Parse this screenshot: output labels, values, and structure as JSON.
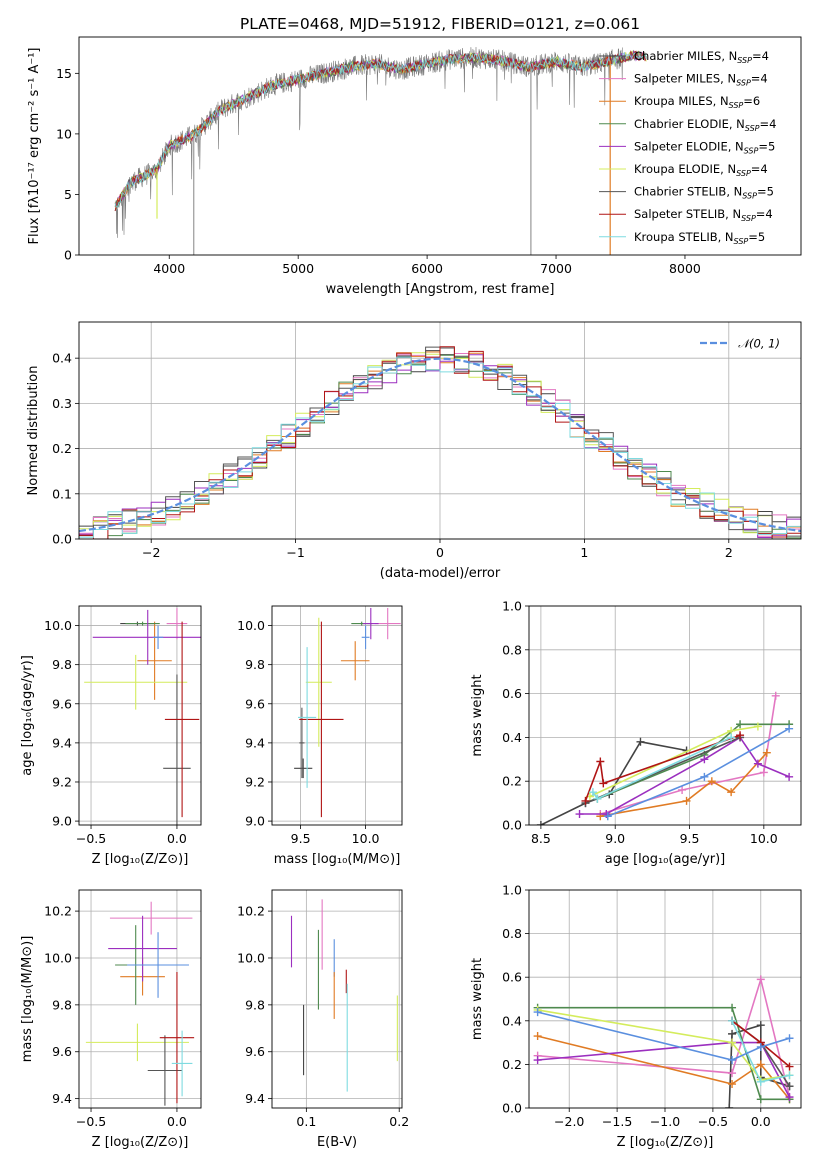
{
  "figure": {
    "title": "PLATE=0468, MJD=51912, FIBERID=0121, z=0.061"
  },
  "colors": {
    "Chabrier MILES": "#444444",
    "Salpeter MILES": "#e377c2",
    "Kroupa MILES": "#e07b24",
    "Chabrier ELODIE": "#4f8a4f",
    "Salpeter ELODIE": "#9b2fbf",
    "Kroupa ELODIE": "#d4ec5c",
    "Chabrier STELIB": "#555555",
    "Salpeter STELIB": "#b01515",
    "Kroupa STELIB": "#7fdbe0",
    "normal": "#5a8fdf",
    "blue_series": "#5a8fdf",
    "data_grey": "#7a7a7a"
  },
  "chart_data": [
    {
      "id": "spectrum",
      "type": "line",
      "title": "PLATE=0468, MJD=51912, FIBERID=0121, z=0.061",
      "xlabel": "wavelength [Angstrom, rest frame]",
      "ylabel": "Flux [fλ10⁻¹⁷ erg cm⁻² s⁻¹ A⁻¹]",
      "xlim": [
        3300,
        8900
      ],
      "ylim": [
        0,
        18
      ],
      "xticks": [
        4000,
        5000,
        6000,
        7000,
        8000
      ],
      "yticks": [
        0,
        5,
        10,
        15
      ],
      "grid": false,
      "legend_position": "right",
      "continuum": {
        "x": [
          3580,
          3700,
          3800,
          3900,
          4000,
          4100,
          4200,
          4300,
          4400,
          4600,
          4800,
          5000,
          5200,
          5400,
          5600,
          5800,
          6000,
          6200,
          6400,
          6600,
          6800,
          7000,
          7200,
          7400,
          7600,
          7800,
          8000,
          8200,
          8500
        ],
        "y": [
          4.0,
          6.0,
          6.5,
          7.0,
          9.0,
          9.5,
          10.0,
          11.0,
          12.0,
          13.0,
          14.0,
          14.5,
          15.0,
          15.5,
          15.8,
          15.3,
          15.8,
          16.2,
          16.3,
          16.0,
          15.5,
          16.0,
          15.5,
          16.0,
          16.5,
          16.2,
          16.0,
          16.3,
          16.5
        ]
      },
      "legend": [
        {
          "label": "Chabrier MILES, N",
          "sub": "SSP",
          "tail": "=4"
        },
        {
          "label": "Salpeter MILES, N",
          "sub": "SSP",
          "tail": "=4"
        },
        {
          "label": "Kroupa MILES, N",
          "sub": "SSP",
          "tail": "=6"
        },
        {
          "label": "Chabrier ELODIE, N",
          "sub": "SSP",
          "tail": "=4"
        },
        {
          "label": "Salpeter ELODIE, N",
          "sub": "SSP",
          "tail": "=5"
        },
        {
          "label": "Kroupa ELODIE, N",
          "sub": "SSP",
          "tail": "=4"
        },
        {
          "label": "Chabrier STELIB, N",
          "sub": "SSP",
          "tail": "=5"
        },
        {
          "label": "Salpeter STELIB, N",
          "sub": "SSP",
          "tail": "=4"
        },
        {
          "label": "Kroupa STELIB, N",
          "sub": "SSP",
          "tail": "=5"
        }
      ]
    },
    {
      "id": "residuals",
      "type": "line",
      "xlabel": "(data-model)/error",
      "ylabel": "Normed distribution",
      "xlim": [
        -2.5,
        2.5
      ],
      "ylim": [
        0,
        0.48
      ],
      "xticks": [
        -2,
        -1,
        0,
        1,
        2
      ],
      "yticks": [
        0.0,
        0.1,
        0.2,
        0.3,
        0.4
      ],
      "grid": true,
      "legend_position": "top-right",
      "normal_label": "𝒩(0, 1)",
      "bin_width": 0.1
    },
    {
      "id": "age_vs_Z",
      "type": "scatter",
      "xlabel": "Z [log₁₀(Z/Z⊙)]",
      "ylabel": "age  [log₁₀(age/yr)]",
      "xlim": [
        -0.57,
        0.14
      ],
      "ylim": [
        8.98,
        10.1
      ],
      "xticks": [
        -0.5,
        0.0
      ],
      "yticks": [
        9.0,
        9.2,
        9.4,
        9.6,
        9.8,
        10.0
      ],
      "grid": true,
      "points": [
        {
          "model": "Chabrier MILES",
          "x": -0.23,
          "y": 10.01,
          "xerr": 0.1,
          "yerr": 0.01
        },
        {
          "model": "Salpeter MILES",
          "x": 0.0,
          "y": 10.01,
          "xerr": 0.06,
          "yerr": 0.08
        },
        {
          "model": "Kroupa MILES",
          "x": -0.13,
          "y": 9.82,
          "xerr": 0.1,
          "yerr": 0.2
        },
        {
          "model": "Chabrier ELODIE",
          "x": -0.2,
          "y": 10.01,
          "xerr": 0.1,
          "yerr": 0.01
        },
        {
          "model": "Salpeter ELODIE",
          "x": -0.17,
          "y": 9.94,
          "xerr": 0.32,
          "yerr": 0.14
        },
        {
          "model": "Kroupa ELODIE",
          "x": -0.24,
          "y": 9.71,
          "xerr": 0.3,
          "yerr": 0.14
        },
        {
          "model": "Chabrier STELIB",
          "x": 0.0,
          "y": 9.27,
          "xerr": 0.08,
          "yerr": 0.48
        },
        {
          "model": "Salpeter STELIB",
          "x": 0.03,
          "y": 9.52,
          "xerr": 0.1,
          "yerr": 0.5
        },
        {
          "model": "blue",
          "x": -0.11,
          "y": 9.94,
          "xerr": 0.03,
          "yerr": 0.06
        }
      ]
    },
    {
      "id": "age_vs_mass",
      "type": "scatter",
      "xlabel": "mass [log₁₀(M/M⊙)]",
      "ylabel": "",
      "xlim": [
        9.28,
        10.28
      ],
      "ylim": [
        8.98,
        10.1
      ],
      "xticks": [
        9.5,
        10.0
      ],
      "yticks": [
        9.0,
        9.2,
        9.4,
        9.6,
        9.8,
        10.0
      ],
      "grid": true,
      "points": [
        {
          "model": "Chabrier MILES",
          "x": 9.52,
          "y": 9.27,
          "xerr": 0.07,
          "yerr": 0.05
        },
        {
          "model": "Salpeter MILES",
          "x": 10.17,
          "y": 10.01,
          "xerr": 0.1,
          "yerr": 0.08
        },
        {
          "model": "Kroupa MILES",
          "x": 9.92,
          "y": 9.82,
          "xerr": 0.11,
          "yerr": 0.1
        },
        {
          "model": "Chabrier ELODIE",
          "x": 9.97,
          "y": 10.01,
          "xerr": 0.08,
          "yerr": 0.01
        },
        {
          "model": "Salpeter ELODIE",
          "x": 10.04,
          "y": 10.01,
          "xerr": 0.06,
          "yerr": 0.08
        },
        {
          "model": "Kroupa ELODIE",
          "x": 9.64,
          "y": 9.71,
          "xerr": 0.1,
          "yerr": 0.33
        },
        {
          "model": "Chabrier STELIB",
          "x": 9.51,
          "y": 9.4,
          "xerr": 0.02,
          "yerr": 0.18
        },
        {
          "model": "Salpeter STELIB",
          "x": 9.66,
          "y": 9.52,
          "xerr": 0.17,
          "yerr": 0.5
        },
        {
          "model": "Kroupa STELIB",
          "x": 9.55,
          "y": 9.53,
          "xerr": 0.07,
          "yerr": 0.36
        },
        {
          "model": "blue",
          "x": 10.0,
          "y": 9.94,
          "xerr": 0.03,
          "yerr": 0.06
        }
      ]
    },
    {
      "id": "weight_vs_age",
      "type": "line",
      "xlabel": "age  [log₁₀(age/yr)]",
      "ylabel": "mass weight",
      "xlim": [
        8.42,
        10.25
      ],
      "ylim": [
        0.0,
        1.0
      ],
      "xticks": [
        8.5,
        9.0,
        9.5,
        10.0
      ],
      "yticks": [
        0.0,
        0.2,
        0.4,
        0.6,
        0.8,
        1.0
      ],
      "grid": true,
      "series": [
        {
          "model": "Chabrier MILES",
          "x": [
            8.5,
            8.8,
            8.96,
            9.17,
            9.48
          ],
          "y": [
            0.0,
            0.1,
            0.14,
            0.38,
            0.34
          ]
        },
        {
          "model": "Salpeter MILES",
          "x": [
            8.9,
            9.45,
            10.0,
            10.08
          ],
          "y": [
            0.05,
            0.16,
            0.24,
            0.59
          ]
        },
        {
          "model": "Kroupa MILES",
          "x": [
            8.9,
            9.48,
            9.65,
            9.78,
            10.02
          ],
          "y": [
            0.04,
            0.11,
            0.2,
            0.15,
            0.33
          ]
        },
        {
          "model": "Chabrier ELODIE",
          "x": [
            8.88,
            9.6,
            9.84,
            10.17
          ],
          "y": [
            0.12,
            0.32,
            0.46,
            0.46
          ]
        },
        {
          "model": "Salpeter ELODIE",
          "x": [
            8.76,
            8.94,
            9.6,
            9.84,
            9.96,
            10.17
          ],
          "y": [
            0.05,
            0.05,
            0.3,
            0.4,
            0.28,
            0.22
          ]
        },
        {
          "model": "Kroupa ELODIE",
          "x": [
            8.83,
            9.78,
            9.96
          ],
          "y": [
            0.13,
            0.43,
            0.45
          ]
        },
        {
          "model": "Chabrier STELIB",
          "x": [
            8.8,
            9.84
          ],
          "y": [
            0.1,
            0.4
          ]
        },
        {
          "model": "Salpeter STELIB",
          "x": [
            8.8,
            8.9,
            8.92,
            9.84
          ],
          "y": [
            0.11,
            0.29,
            0.19,
            0.41
          ]
        },
        {
          "model": "Kroupa STELIB",
          "x": [
            8.85,
            8.88,
            9.78
          ],
          "y": [
            0.15,
            0.12,
            0.4
          ]
        },
        {
          "model": "blue",
          "x": [
            8.95,
            9.6,
            10.17
          ],
          "y": [
            0.04,
            0.22,
            0.44
          ]
        }
      ]
    },
    {
      "id": "mass_vs_Z",
      "type": "scatter",
      "xlabel": "Z [log₁₀(Z/Z⊙)]",
      "ylabel": "mass [log₁₀(M/M⊙)]",
      "xlim": [
        -0.57,
        0.14
      ],
      "ylim": [
        9.36,
        10.29
      ],
      "xticks": [
        -0.5,
        0.0
      ],
      "yticks": [
        9.4,
        9.6,
        9.8,
        10.0,
        10.2
      ],
      "grid": true,
      "points": [
        {
          "model": "Salpeter MILES",
          "x": -0.15,
          "y": 10.17,
          "xerr": 0.24,
          "yerr": 0.07
        },
        {
          "model": "Kroupa MILES",
          "x": -0.2,
          "y": 9.92,
          "xerr": 0.13,
          "yerr": 0.08
        },
        {
          "model": "Chabrier ELODIE",
          "x": -0.24,
          "y": 9.97,
          "xerr": 0.12,
          "yerr": 0.17
        },
        {
          "model": "Salpeter ELODIE",
          "x": -0.2,
          "y": 10.04,
          "xerr": 0.2,
          "yerr": 0.14
        },
        {
          "model": "Kroupa ELODIE",
          "x": -0.23,
          "y": 9.64,
          "xerr": 0.3,
          "yerr": 0.08
        },
        {
          "model": "Chabrier STELIB",
          "x": -0.07,
          "y": 9.52,
          "xerr": 0.1,
          "yerr": 0.15
        },
        {
          "model": "Salpeter STELIB",
          "x": 0.0,
          "y": 9.66,
          "xerr": 0.1,
          "yerr": 0.28
        },
        {
          "model": "Kroupa STELIB",
          "x": 0.03,
          "y": 9.55,
          "xerr": 0.06,
          "yerr": 0.14
        },
        {
          "model": "blue",
          "x": -0.11,
          "y": 9.97,
          "xerr": 0.18,
          "yerr": 0.14
        }
      ]
    },
    {
      "id": "mass_vs_EBV",
      "type": "scatter",
      "xlabel": "E(B-V)",
      "ylabel": "",
      "xlim": [
        0.063,
        0.203
      ],
      "ylim": [
        9.36,
        10.29
      ],
      "xticks": [
        0.1,
        0.2
      ],
      "yticks": [
        9.4,
        9.6,
        9.8,
        10.0,
        10.2
      ],
      "grid": true,
      "points": [
        {
          "model": "Chabrier MILES",
          "x": 0.097,
          "y": 9.65,
          "yerr": 0.15
        },
        {
          "model": "Salpeter ELODIE",
          "x": 0.084,
          "y": 10.07,
          "yerr": 0.11
        },
        {
          "model": "Chabrier ELODIE",
          "x": 0.113,
          "y": 9.95,
          "yerr": 0.17
        },
        {
          "model": "Salpeter MILES",
          "x": 0.117,
          "y": 10.1,
          "yerr": 0.15
        },
        {
          "model": "blue",
          "x": 0.13,
          "y": 10.0,
          "yerr": 0.08
        },
        {
          "model": "Kroupa MILES",
          "x": 0.13,
          "y": 9.84,
          "yerr": 0.1
        },
        {
          "model": "Salpeter STELIB",
          "x": 0.143,
          "y": 9.9,
          "yerr": 0.05
        },
        {
          "model": "Kroupa STELIB",
          "x": 0.144,
          "y": 9.66,
          "yerr": 0.23
        },
        {
          "model": "Kroupa ELODIE",
          "x": 0.198,
          "y": 9.7,
          "yerr": 0.14
        }
      ]
    },
    {
      "id": "weight_vs_Z",
      "type": "line",
      "xlabel": "Z [log₁₀(Z/Z⊙)]",
      "ylabel": "mass weight",
      "xlim": [
        -2.42,
        0.42
      ],
      "ylim": [
        0.0,
        1.0
      ],
      "xticks": [
        -2.0,
        -1.5,
        -1.0,
        -0.5,
        0.0
      ],
      "yticks": [
        0.0,
        0.2,
        0.4,
        0.6,
        0.8,
        1.0
      ],
      "grid": true,
      "series": [
        {
          "model": "Chabrier MILES",
          "x": [
            -0.33,
            -0.3,
            0.0,
            0.0,
            0.3
          ],
          "y": [
            0.0,
            0.34,
            0.38,
            0.14,
            0.1
          ]
        },
        {
          "model": "Salpeter MILES",
          "x": [
            -2.33,
            -0.3,
            0.0,
            0.3
          ],
          "y": [
            0.24,
            0.16,
            0.59,
            0.05
          ]
        },
        {
          "model": "Kroupa MILES",
          "x": [
            -2.33,
            -0.3,
            0.0,
            0.3
          ],
          "y": [
            0.33,
            0.11,
            0.2,
            0.04
          ]
        },
        {
          "model": "Chabrier ELODIE",
          "x": [
            -2.33,
            -0.3,
            0.0,
            0.3
          ],
          "y": [
            0.46,
            0.46,
            0.04,
            0.04
          ]
        },
        {
          "model": "Salpeter ELODIE",
          "x": [
            -2.33,
            -0.3,
            0.0,
            0.3
          ],
          "y": [
            0.22,
            0.3,
            0.3,
            0.05
          ]
        },
        {
          "model": "Kroupa ELODIE",
          "x": [
            -2.33,
            -0.3,
            0.0,
            0.3
          ],
          "y": [
            0.45,
            0.3,
            0.13,
            0.15
          ]
        },
        {
          "model": "Chabrier STELIB",
          "x": [
            -0.3,
            0.0,
            0.3
          ],
          "y": [
            0.4,
            0.3,
            0.1
          ]
        },
        {
          "model": "Salpeter STELIB",
          "x": [
            -0.3,
            0.0,
            0.3
          ],
          "y": [
            0.4,
            0.3,
            0.19
          ]
        },
        {
          "model": "Kroupa STELIB",
          "x": [
            -0.3,
            0.0,
            0.3
          ],
          "y": [
            0.4,
            0.12,
            0.15
          ]
        },
        {
          "model": "blue",
          "x": [
            -2.33,
            -0.3,
            0.0,
            0.3
          ],
          "y": [
            0.44,
            0.22,
            0.28,
            0.32
          ]
        }
      ]
    }
  ]
}
